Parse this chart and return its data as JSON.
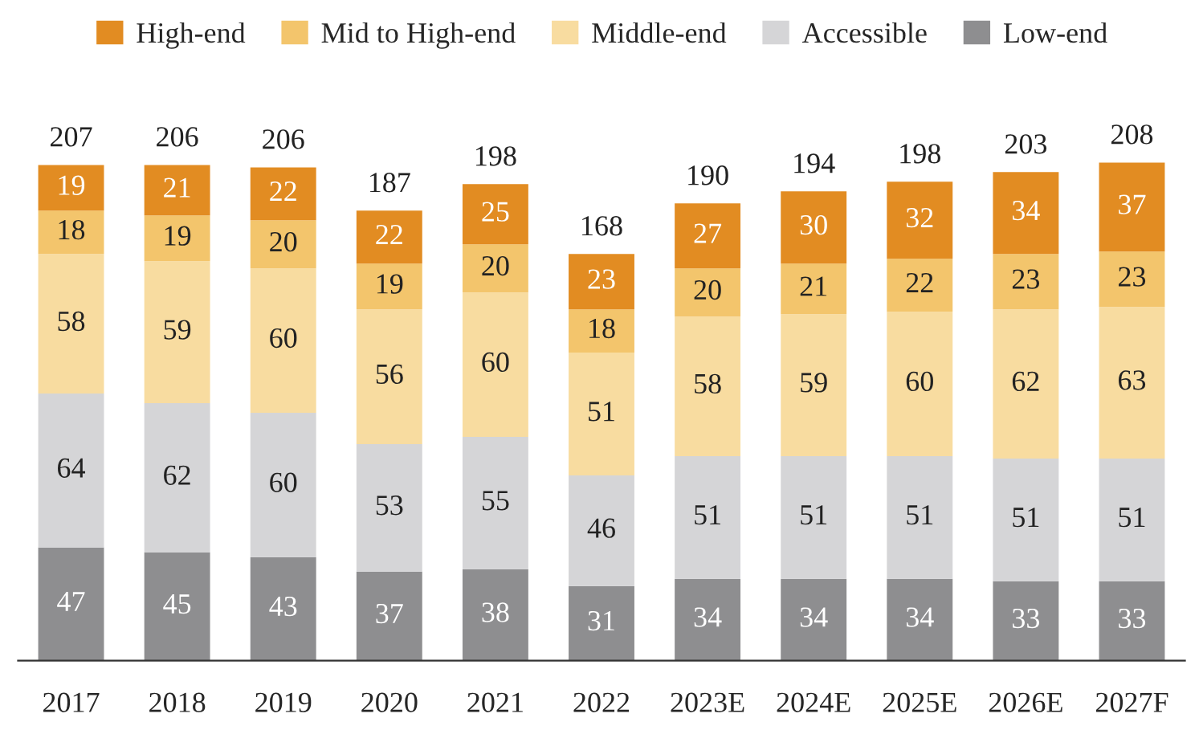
{
  "chart_data": {
    "type": "bar",
    "stacked": true,
    "data_labels": true,
    "legend": "top",
    "grid": false,
    "categories": [
      "2017",
      "2018",
      "2019",
      "2020",
      "2021",
      "2022",
      "2023E",
      "2024E",
      "2025E",
      "2026E",
      "2027F"
    ],
    "series": [
      {
        "name": "Low-end",
        "color": "#8e8e90",
        "values": [
          47,
          45,
          43,
          37,
          38,
          31,
          34,
          34,
          34,
          33,
          33
        ]
      },
      {
        "name": "Accessible",
        "color": "#d5d5d7",
        "values": [
          64,
          62,
          60,
          53,
          55,
          46,
          51,
          51,
          51,
          51,
          51
        ]
      },
      {
        "name": "Middle-end",
        "color": "#f8dca0",
        "values": [
          58,
          59,
          60,
          56,
          60,
          51,
          58,
          59,
          60,
          62,
          63
        ]
      },
      {
        "name": "Mid to High-end",
        "color": "#f3c56c",
        "values": [
          18,
          19,
          20,
          19,
          20,
          18,
          20,
          21,
          22,
          23,
          23
        ]
      },
      {
        "name": "High-end",
        "color": "#e28c22",
        "values": [
          19,
          21,
          22,
          22,
          25,
          23,
          27,
          30,
          32,
          34,
          37
        ]
      }
    ],
    "totals": [
      "207",
      "206",
      "206",
      "187",
      "198",
      "168",
      "190",
      "194",
      "198",
      "203",
      "208"
    ]
  }
}
